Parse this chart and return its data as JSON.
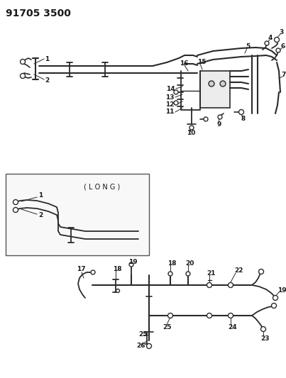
{
  "title": "91705 3500",
  "bg_color": "#ffffff",
  "line_color": "#2a2a2a",
  "text_color": "#1a1a1a",
  "figsize": [
    4.03,
    5.33
  ],
  "dpi": 100
}
